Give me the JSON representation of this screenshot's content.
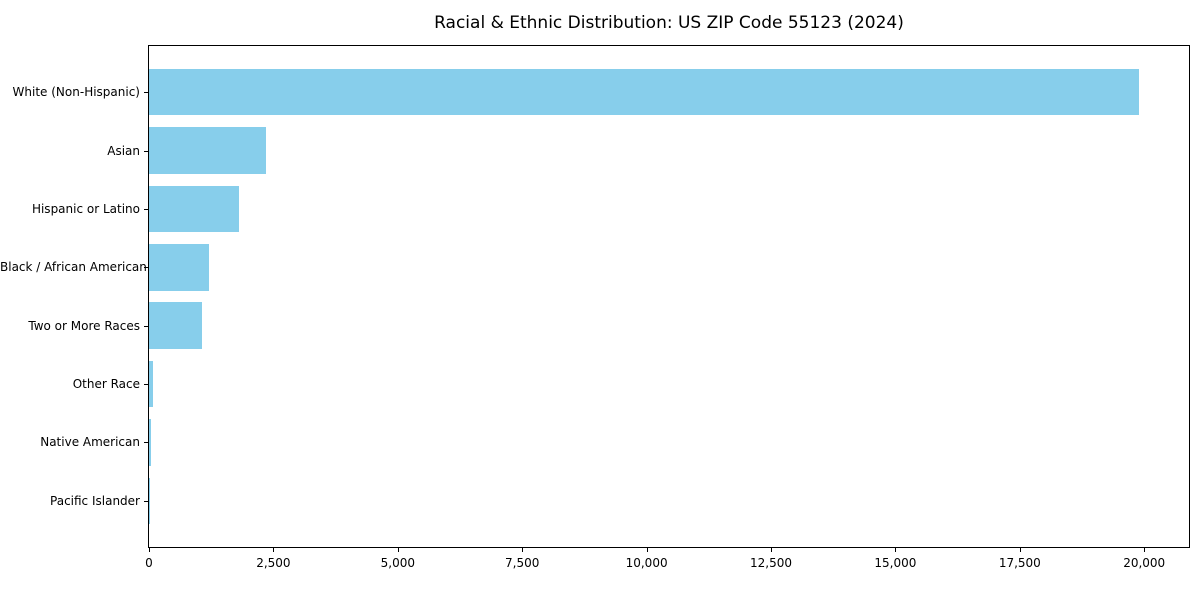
{
  "chart_data": {
    "type": "bar",
    "orientation": "horizontal",
    "title": "Racial & Ethnic Distribution: US ZIP Code 55123 (2024)",
    "categories": [
      "White (Non-Hispanic)",
      "Asian",
      "Hispanic or Latino",
      "Black / African American",
      "Two or More Races",
      "Other Race",
      "Native American",
      "Pacific Islander"
    ],
    "values": [
      19900,
      2350,
      1800,
      1210,
      1060,
      90,
      35,
      12
    ],
    "bar_color": "#87CEEB",
    "xlabel": "",
    "ylabel": "",
    "xlim": [
      0,
      20900
    ],
    "x_ticks": [
      0,
      2500,
      5000,
      7500,
      10000,
      12500,
      15000,
      17500,
      20000
    ],
    "x_tick_labels": [
      "0",
      "2,500",
      "5,000",
      "7,500",
      "10,000",
      "12,500",
      "15,000",
      "17,500",
      "20,000"
    ],
    "grid": "off",
    "legend": "none",
    "bar_width_fraction": 0.8,
    "axis_margin_fraction": 0.79
  }
}
